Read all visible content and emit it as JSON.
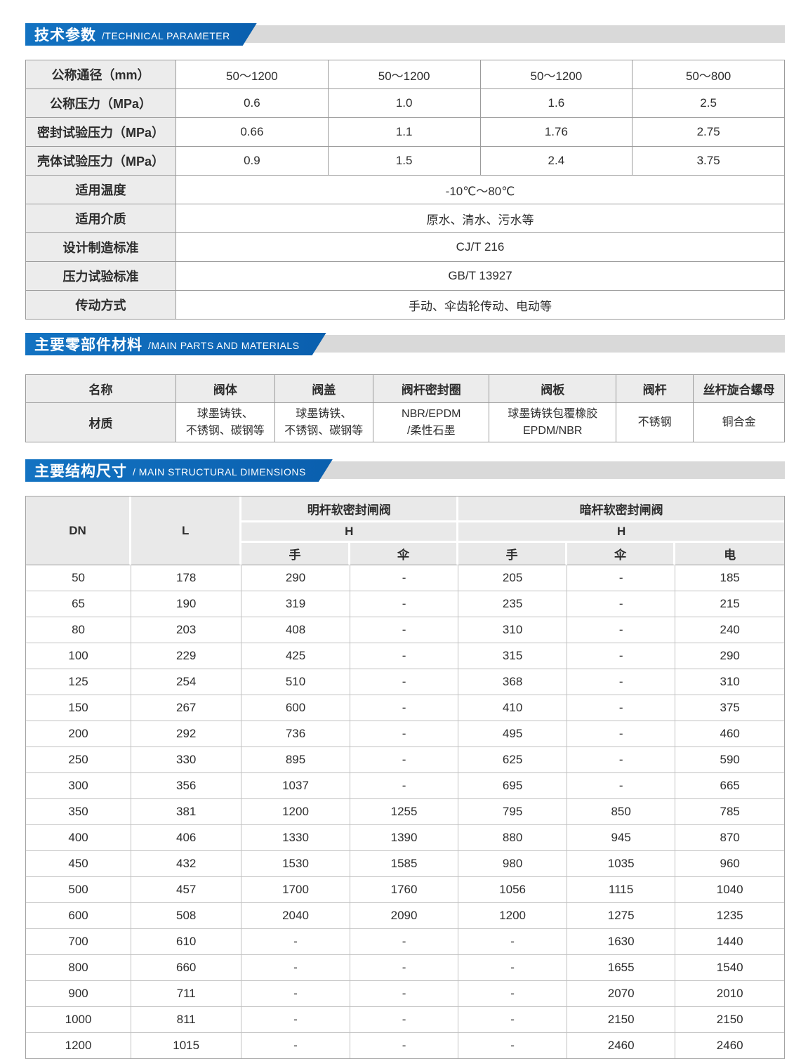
{
  "colors": {
    "accent_blue": "#0d68b5",
    "band_gray": "#d9d9d9",
    "header_cell_gray": "#ececec"
  },
  "sections": {
    "technical": {
      "title_cn": "技术参数",
      "title_en": "/TECHNICAL PARAMETER"
    },
    "materials": {
      "title_cn": "主要零部件材料",
      "title_en": "/MAIN PARTS AND MATERIALS"
    },
    "dimensions": {
      "title_cn": "主要结构尺寸",
      "title_en": "/ MAIN STRUCTURAL DIMENSIONS"
    }
  },
  "technical_table": {
    "rows": [
      {
        "label": "公称通径（mm）",
        "values": [
          "50～1200",
          "50～1200",
          "50～1200",
          "50～800"
        ]
      },
      {
        "label": "公称压力（MPa）",
        "values": [
          "0.6",
          "1.0",
          "1.6",
          "2.5"
        ]
      },
      {
        "label": "密封试验压力（MPa）",
        "values": [
          "0.66",
          "1.1",
          "1.76",
          "2.75"
        ]
      },
      {
        "label": "壳体试验压力（MPa）",
        "values": [
          "0.9",
          "1.5",
          "2.4",
          "3.75"
        ]
      },
      {
        "label": "适用温度",
        "values": [
          "-10℃～80℃"
        ]
      },
      {
        "label": "适用介质",
        "values": [
          "原水、清水、污水等"
        ]
      },
      {
        "label": "设计制造标准",
        "values": [
          "CJ/T 216"
        ]
      },
      {
        "label": "压力试验标准",
        "values": [
          "GB/T 13927"
        ]
      },
      {
        "label": "传动方式",
        "values": [
          "手动、伞齿轮传动、电动等"
        ]
      }
    ]
  },
  "materials_table": {
    "name_label": "名称",
    "material_label": "材质",
    "columns": [
      "阀体",
      "阀盖",
      "阀杆密封圈",
      "阀板",
      "阀杆",
      "丝杆旋合螺母"
    ],
    "materials": [
      "球墨铸铁、\n不锈钢、碳钢等",
      "球墨铸铁、\n不锈钢、碳钢等",
      "NBR/EPDM\n/柔性石墨",
      "球墨铸铁包覆橡胶\nEPDM/NBR",
      "不锈钢",
      "铜合金"
    ]
  },
  "dimensions_table": {
    "dn_label": "DN",
    "l_label": "L",
    "group1": "明杆软密封闸阀",
    "group2": "暗杆软密封闸阀",
    "h_label": "H",
    "subcols": [
      "手",
      "伞",
      "手",
      "伞",
      "电"
    ],
    "rows": [
      [
        "50",
        "178",
        "290",
        "-",
        "205",
        "-",
        "185"
      ],
      [
        "65",
        "190",
        "319",
        "-",
        "235",
        "-",
        "215"
      ],
      [
        "80",
        "203",
        "408",
        "-",
        "310",
        "-",
        "240"
      ],
      [
        "100",
        "229",
        "425",
        "-",
        "315",
        "-",
        "290"
      ],
      [
        "125",
        "254",
        "510",
        "-",
        "368",
        "-",
        "310"
      ],
      [
        "150",
        "267",
        "600",
        "-",
        "410",
        "-",
        "375"
      ],
      [
        "200",
        "292",
        "736",
        "-",
        "495",
        "-",
        "460"
      ],
      [
        "250",
        "330",
        "895",
        "-",
        "625",
        "-",
        "590"
      ],
      [
        "300",
        "356",
        "1037",
        "-",
        "695",
        "-",
        "665"
      ],
      [
        "350",
        "381",
        "1200",
        "1255",
        "795",
        "850",
        "785"
      ],
      [
        "400",
        "406",
        "1330",
        "1390",
        "880",
        "945",
        "870"
      ],
      [
        "450",
        "432",
        "1530",
        "1585",
        "980",
        "1035",
        "960"
      ],
      [
        "500",
        "457",
        "1700",
        "1760",
        "1056",
        "1115",
        "1040"
      ],
      [
        "600",
        "508",
        "2040",
        "2090",
        "1200",
        "1275",
        "1235"
      ],
      [
        "700",
        "610",
        "-",
        "-",
        "-",
        "1630",
        "1440"
      ],
      [
        "800",
        "660",
        "-",
        "-",
        "-",
        "1655",
        "1540"
      ],
      [
        "900",
        "711",
        "-",
        "-",
        "-",
        "2070",
        "2010"
      ],
      [
        "1000",
        "811",
        "-",
        "-",
        "-",
        "2150",
        "2150"
      ],
      [
        "1200",
        "1015",
        "-",
        "-",
        "-",
        "2460",
        "2460"
      ]
    ]
  }
}
